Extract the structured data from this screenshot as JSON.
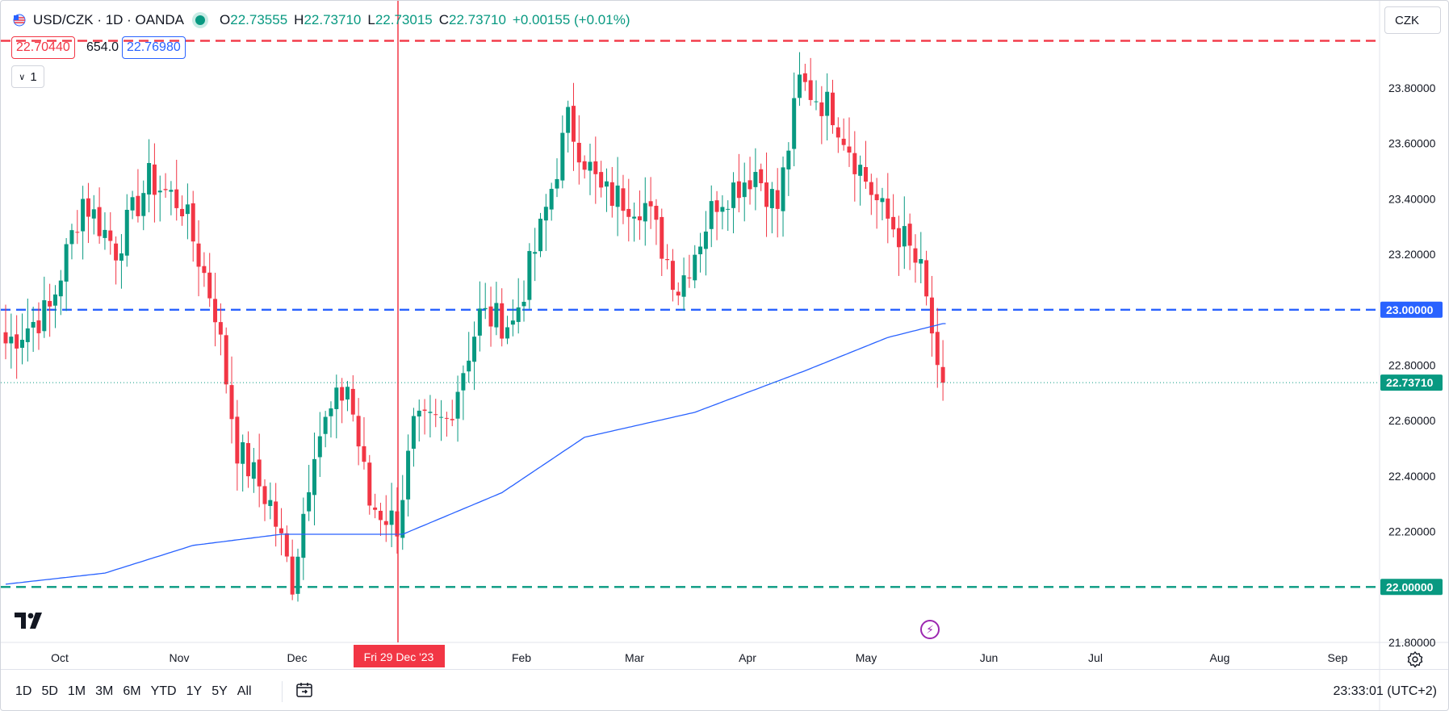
{
  "header": {
    "symbol": "USD/CZK · 1D · OANDA",
    "o_label": "O",
    "o_value": "22.73555",
    "h_label": "H",
    "h_value": "22.73710",
    "l_label": "L",
    "l_value": "22.73015",
    "c_label": "C",
    "c_value": "22.73710",
    "change": "+0.00155 (+0.01%)"
  },
  "quote": {
    "sell": "22.70440",
    "spread": "654.0",
    "buy": "22.76980",
    "lot": "1"
  },
  "currency": "CZK",
  "bottom": {
    "ranges": [
      "1D",
      "5D",
      "1M",
      "3M",
      "6M",
      "YTD",
      "1Y",
      "5Y",
      "All"
    ],
    "clock": "23:33:01 (UTC+2)"
  },
  "colors": {
    "up": "#089981",
    "down": "#f23645",
    "ma": "#2962ff",
    "blue_line": "#2962ff",
    "red_line": "#f23645",
    "green_line": "#089981"
  },
  "chart_data": {
    "type": "candlestick",
    "y_ticks": [
      "23.80000",
      "23.60000",
      "23.40000",
      "23.20000",
      "22.80000",
      "22.60000",
      "22.40000",
      "22.20000",
      "21.80000"
    ],
    "x_ticks": [
      "Oct",
      "Nov",
      "Dec",
      "Feb",
      "Mar",
      "Apr",
      "May",
      "Jun",
      "Jul",
      "Aug",
      "Sep"
    ],
    "ylim": [
      21.8,
      23.95
    ],
    "last_price": "22.73710",
    "crosshair_label": "Fri 29 Dec '23",
    "horizontal_lines": [
      {
        "price": 23.97,
        "label": "",
        "color": "#f23645"
      },
      {
        "price": 23.0,
        "label": "23.00000",
        "color": "#2962ff"
      },
      {
        "price": 22.0,
        "label": "22.00000",
        "color": "#089981"
      }
    ],
    "key_points": [
      {
        "x": 0,
        "y": 22.88
      },
      {
        "x": 8,
        "y": 23.0
      },
      {
        "x": 14,
        "y": 23.4
      },
      {
        "x": 20,
        "y": 23.22
      },
      {
        "x": 26,
        "y": 23.47
      },
      {
        "x": 32,
        "y": 23.38
      },
      {
        "x": 38,
        "y": 23.0
      },
      {
        "x": 42,
        "y": 22.5
      },
      {
        "x": 48,
        "y": 22.3
      },
      {
        "x": 52,
        "y": 22.02
      },
      {
        "x": 56,
        "y": 22.52
      },
      {
        "x": 62,
        "y": 22.73
      },
      {
        "x": 66,
        "y": 22.3
      },
      {
        "x": 71,
        "y": 22.23
      },
      {
        "x": 74,
        "y": 22.57
      },
      {
        "x": 80,
        "y": 22.6
      },
      {
        "x": 86,
        "y": 22.98
      },
      {
        "x": 92,
        "y": 22.95
      },
      {
        "x": 97,
        "y": 23.28
      },
      {
        "x": 102,
        "y": 23.68
      },
      {
        "x": 108,
        "y": 23.42
      },
      {
        "x": 116,
        "y": 23.38
      },
      {
        "x": 122,
        "y": 23.08
      },
      {
        "x": 129,
        "y": 23.4
      },
      {
        "x": 136,
        "y": 23.5
      },
      {
        "x": 140,
        "y": 23.37
      },
      {
        "x": 144,
        "y": 23.82
      },
      {
        "x": 150,
        "y": 23.72
      },
      {
        "x": 154,
        "y": 23.55
      },
      {
        "x": 159,
        "y": 23.35
      },
      {
        "x": 163,
        "y": 23.25
      },
      {
        "x": 166,
        "y": 23.13
      },
      {
        "x": 168,
        "y": 22.92
      },
      {
        "x": 169,
        "y": 22.74
      },
      {
        "x": 170,
        "y": 22.737
      }
    ],
    "ma_points": [
      {
        "x": 0,
        "y": 22.01
      },
      {
        "x": 18,
        "y": 22.05
      },
      {
        "x": 34,
        "y": 22.15
      },
      {
        "x": 50,
        "y": 22.19
      },
      {
        "x": 62,
        "y": 22.19
      },
      {
        "x": 72,
        "y": 22.19
      },
      {
        "x": 90,
        "y": 22.34
      },
      {
        "x": 105,
        "y": 22.54
      },
      {
        "x": 125,
        "y": 22.63
      },
      {
        "x": 145,
        "y": 22.78
      },
      {
        "x": 160,
        "y": 22.9
      },
      {
        "x": 170,
        "y": 22.95
      }
    ]
  }
}
